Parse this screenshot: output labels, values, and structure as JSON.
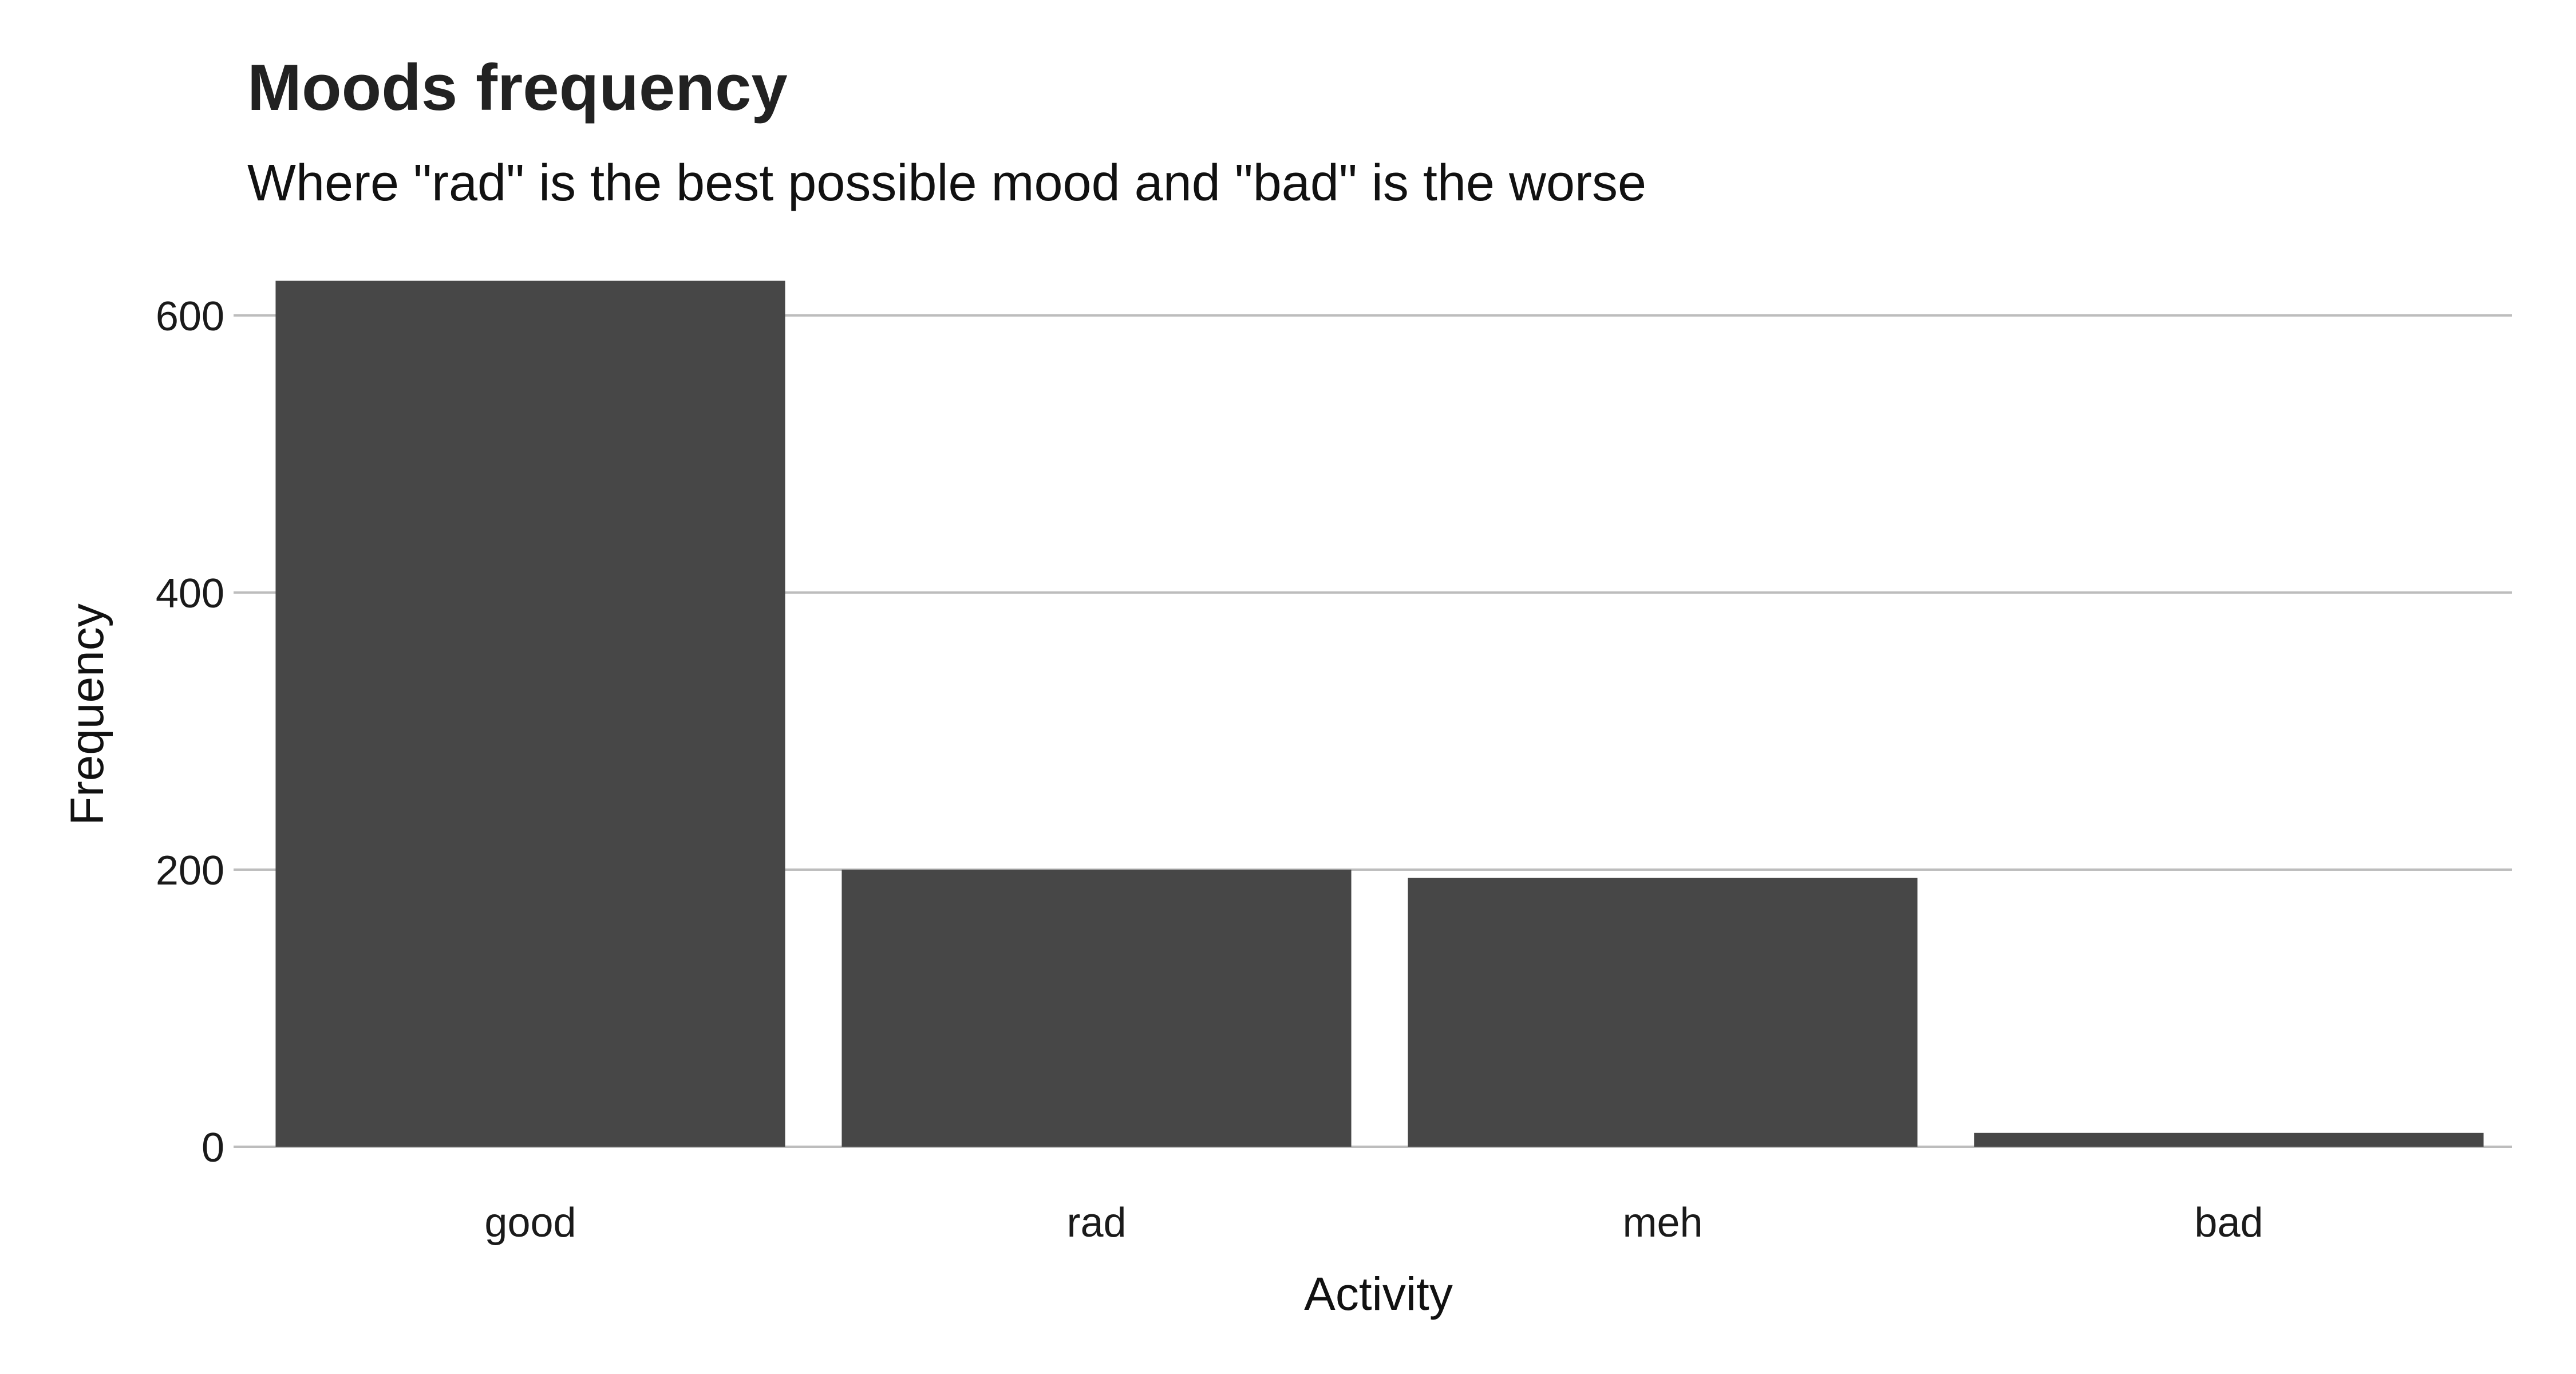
{
  "chart_data": {
    "type": "bar",
    "title": "Moods frequency",
    "subtitle": "Where \"rad\" is the best possible mood and \"bad\" is the worse",
    "xlabel": "Activity",
    "ylabel": "Frequency",
    "categories": [
      "good",
      "rad",
      "meh",
      "bad"
    ],
    "values": [
      625,
      200,
      194,
      10
    ],
    "ylim": [
      0,
      650
    ],
    "yticks": [
      0,
      200,
      400,
      600
    ],
    "grid": "horizontal major gridlines",
    "legend": "none",
    "colors": {
      "bar": "#474747",
      "grid": "#bdbdbd",
      "background": "#ffffff"
    }
  }
}
